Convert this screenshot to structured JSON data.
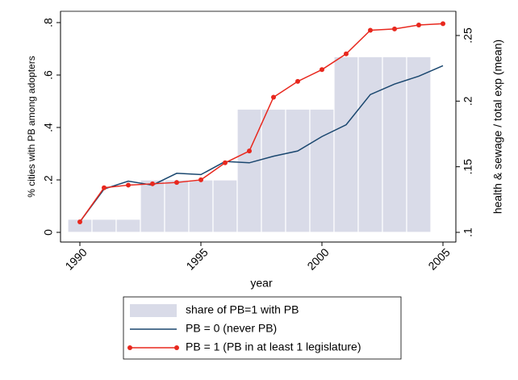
{
  "chart_data": {
    "type": "combo",
    "x_label": "year",
    "y_label": "% cities with PB among adopters",
    "y2_label": "health & sewage / total exp (mean)",
    "x": [
      1990,
      1991,
      1992,
      1993,
      1994,
      1995,
      1996,
      1997,
      1998,
      1999,
      2000,
      2001,
      2002,
      2003,
      2004,
      2005
    ],
    "xlim": [
      1990,
      2005
    ],
    "xticks": [
      1990,
      1995,
      2000,
      2005
    ],
    "ylim": [
      0,
      0.8
    ],
    "yticks": [
      0,
      {
        "value": 0.2,
        "label": ".2"
      },
      {
        "value": 0.4,
        "label": ".4"
      },
      {
        "value": 0.6,
        "label": ".6"
      },
      {
        "value": 0.8,
        "label": ".8"
      }
    ],
    "y2lim": [
      0.1,
      0.25
    ],
    "y2ticks": [
      {
        "value": 0.1,
        "label": ".1"
      },
      {
        "value": 0.15,
        "label": ".15"
      },
      {
        "value": 0.2,
        "label": ".2"
      },
      {
        "value": 0.25,
        "label": ".25"
      }
    ],
    "series": [
      {
        "name": "share of PB=1 with PB",
        "type": "bar",
        "color": "#d9dbe8",
        "values": [
          0.05,
          0.05,
          0.05,
          0.2,
          0.2,
          0.2,
          0.2,
          0.47,
          0.47,
          0.47,
          0.47,
          0.67,
          0.67,
          0.67,
          0.67,
          null
        ]
      },
      {
        "name": "PB = 0 (never PB)",
        "type": "line",
        "axis": "y2",
        "color": "#1a476f",
        "markers": false,
        "values": [
          0.108,
          0.133,
          0.139,
          0.136,
          0.145,
          0.144,
          0.154,
          0.153,
          0.158,
          0.162,
          0.173,
          0.182,
          0.205,
          0.213,
          0.219,
          0.227
        ]
      },
      {
        "name": "PB = 1 (PB in at least 1 legislature)",
        "type": "line",
        "axis": "y2",
        "color": "#e8281e",
        "markers": true,
        "values": [
          0.108,
          0.134,
          0.136,
          0.137,
          0.138,
          0.14,
          0.153,
          0.162,
          0.203,
          0.215,
          0.224,
          0.236,
          0.254,
          0.255,
          0.258,
          0.259
        ]
      }
    ]
  }
}
